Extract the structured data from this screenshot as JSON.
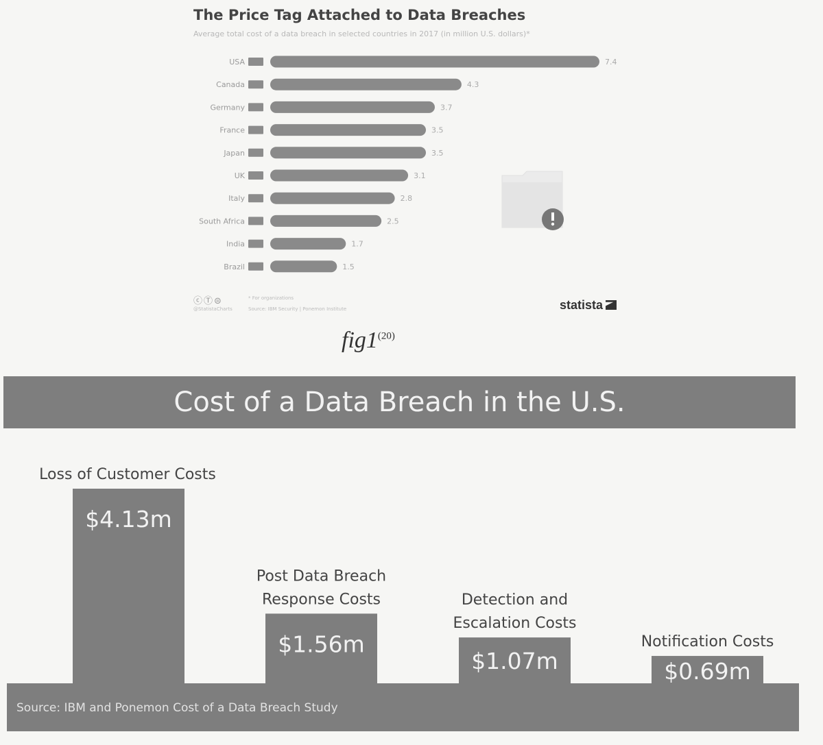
{
  "figure1": {
    "title": "The Price Tag Attached to Data Breaches",
    "subtitle": "Average total cost of a data breach in selected countries in 2017 (in million U.S. dollars)*",
    "footnote": "* For organizations",
    "source": "Source: IBM Security | Ponemon Institute",
    "credit": "@StatistaCharts",
    "brand": "statista",
    "caption_main": "fig1",
    "caption_ref": "(20)",
    "icons": [
      "cc-icon",
      "by-icon",
      "nd-icon",
      "folder-alert-icon",
      "flag-icon"
    ],
    "colors": {
      "bar": "#8a8a8a",
      "text": "#444444"
    }
  },
  "figure2": {
    "title": "Cost of a Data Breach in the U.S.",
    "source": "Source: IBM and Ponemon Cost of a Data Breach Study",
    "colors": {
      "bar": "#7e7e7e",
      "label": "#f2f2f2"
    }
  },
  "chart_data": [
    {
      "type": "bar",
      "orientation": "horizontal",
      "title": "The Price Tag Attached to Data Breaches",
      "subtitle": "Average total cost of a data breach in selected countries in 2017 (in million U.S. dollars)*",
      "categories": [
        "USA",
        "Canada",
        "Germany",
        "France",
        "Japan",
        "UK",
        "Italy",
        "South Africa",
        "India",
        "Brazil"
      ],
      "values": [
        7.4,
        4.3,
        3.7,
        3.5,
        3.5,
        3.1,
        2.8,
        2.5,
        1.7,
        1.5
      ],
      "value_labels": [
        "7.4",
        "4.3",
        "3.7",
        "3.5",
        "3.5",
        "3.1",
        "2.8",
        "2.5",
        "1.7",
        "1.5"
      ],
      "xlim": [
        0,
        7.4
      ],
      "grid": false
    },
    {
      "type": "bar",
      "orientation": "vertical",
      "title": "Cost of a Data Breach in the U.S.",
      "categories": [
        [
          "Loss of Customer Costs"
        ],
        [
          "Post Data Breach",
          "Response Costs"
        ],
        [
          "Detection and",
          "Escalation Costs"
        ],
        [
          "Notification Costs"
        ]
      ],
      "values": [
        4.13,
        1.56,
        1.07,
        0.69
      ],
      "value_labels": [
        "$4.13m",
        "$1.56m",
        "$1.07m",
        "$0.69m"
      ],
      "grid": false
    }
  ]
}
